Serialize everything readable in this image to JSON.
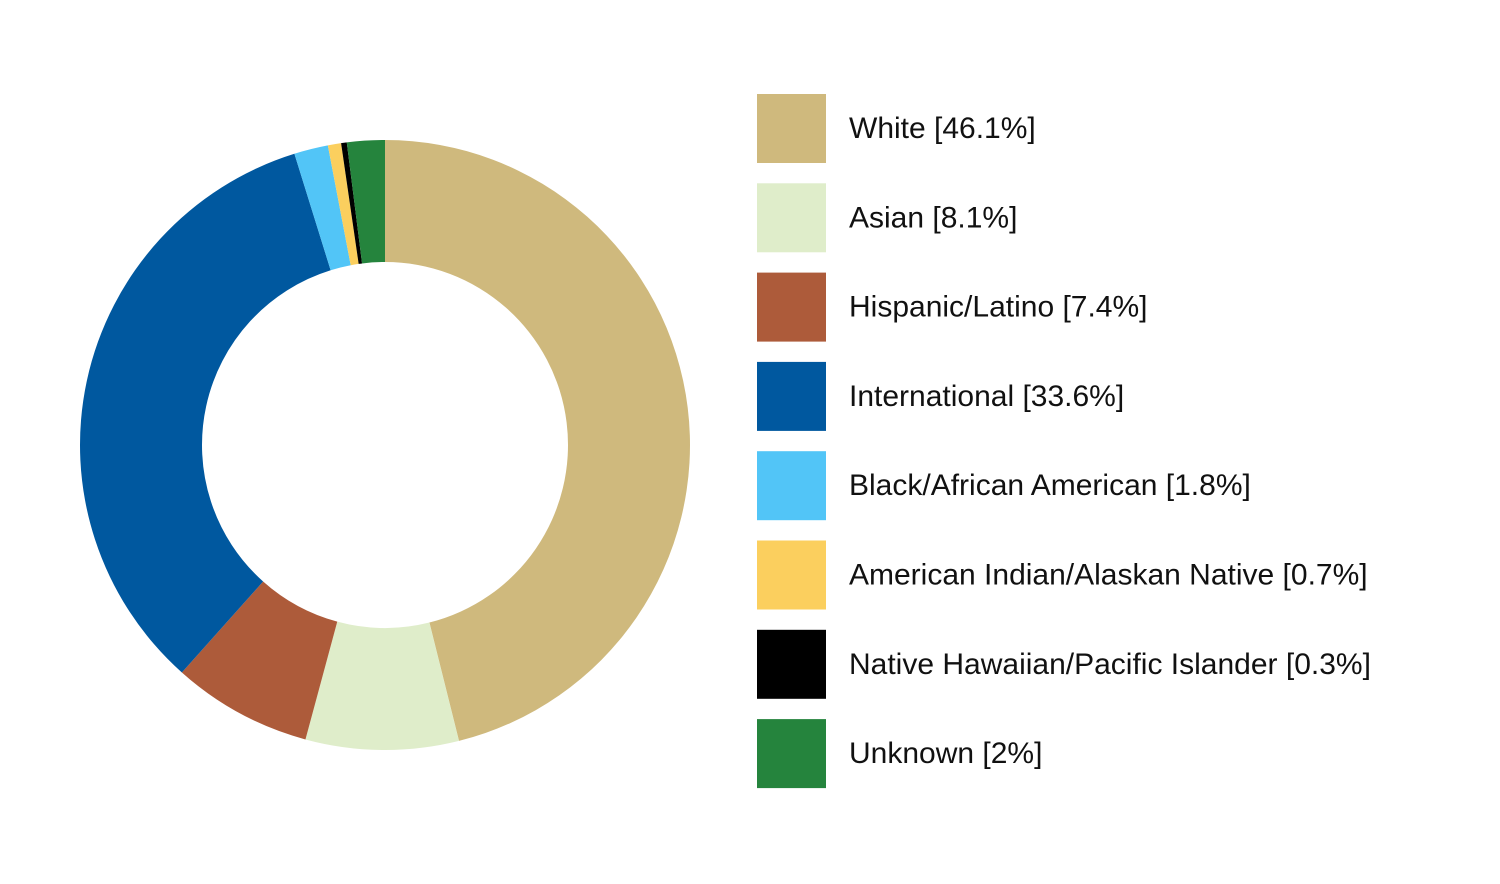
{
  "chart_data": {
    "type": "pie",
    "variant": "donut",
    "legend_position": "right",
    "start_angle": "top",
    "direction": "clockwise",
    "slices": [
      {
        "label": "White [46.1%]",
        "value": 46.1,
        "color": "#CFB97D"
      },
      {
        "label": "Asian [8.1%]",
        "value": 8.1,
        "color": "#DFEDCA"
      },
      {
        "label": "Hispanic/Latino [7.4%]",
        "value": 7.4,
        "color": "#AD5B3A"
      },
      {
        "label": "International [33.6%]",
        "value": 33.6,
        "color": "#00589F"
      },
      {
        "label": "Black/African American [1.8%]",
        "value": 1.8,
        "color": "#52C5F7"
      },
      {
        "label": "American Indian/Alaskan Native [0.7%]",
        "value": 0.7,
        "color": "#FBCF5E"
      },
      {
        "label": "Native Hawaiian/Pacific Islander [0.3%]",
        "value": 0.3,
        "color": "#000000"
      },
      {
        "label": "Unknown [2%]",
        "value": 2,
        "color": "#25843D"
      }
    ]
  }
}
